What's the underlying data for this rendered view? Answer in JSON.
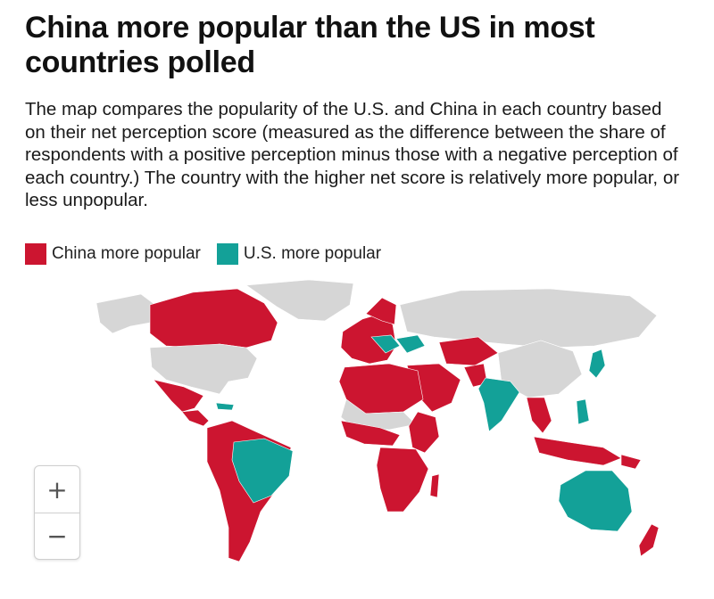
{
  "header": {
    "title": "China more popular than the US in most countries polled",
    "subtitle": "The map compares the popularity of the U.S. and China in each country based on their net perception score (measured as the difference between the share of respondents with a positive perception minus those with a negative perception of each country.) The country with the higher net score is relatively more popular, or less unpopular."
  },
  "legend": {
    "items": [
      {
        "label": "China more popular",
        "color": "#cc1530"
      },
      {
        "label": "U.S. more popular",
        "color": "#13a198"
      }
    ]
  },
  "map": {
    "colors": {
      "china": "#cc1530",
      "us": "#13a198",
      "no_data": "#d6d6d6"
    }
  },
  "controls": {
    "zoom_in": "+",
    "zoom_out": "−"
  }
}
